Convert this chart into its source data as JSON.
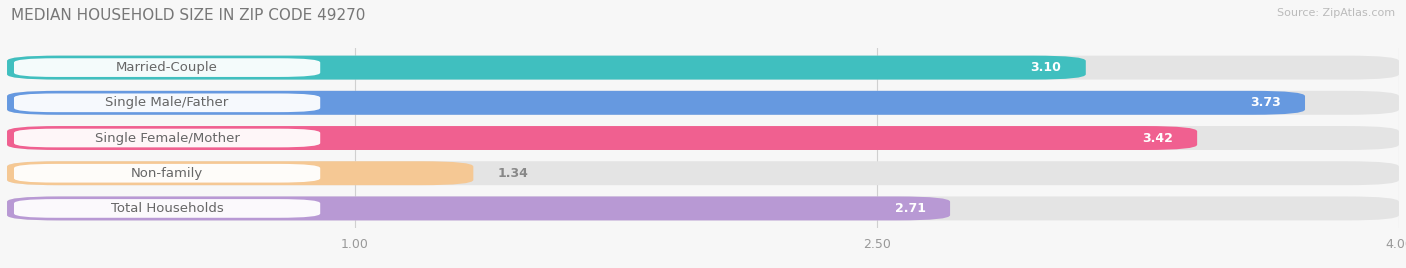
{
  "title": "MEDIAN HOUSEHOLD SIZE IN ZIP CODE 49270",
  "source": "Source: ZipAtlas.com",
  "categories": [
    "Married-Couple",
    "Single Male/Father",
    "Single Female/Mother",
    "Non-family",
    "Total Households"
  ],
  "values": [
    3.1,
    3.73,
    3.42,
    1.34,
    2.71
  ],
  "bar_colors": [
    "#40bfbf",
    "#6699e0",
    "#f06090",
    "#f5c894",
    "#b899d4"
  ],
  "xlim": [
    0,
    4.0
  ],
  "xticks": [
    1.0,
    2.5,
    4.0
  ],
  "background_color": "#f7f7f7",
  "bar_bg_color": "#e4e4e4",
  "white_label_bg": "#ffffff",
  "label_text_color": "#666666",
  "value_color_inside": "#ffffff",
  "value_color_outside": "#888888",
  "title_fontsize": 11,
  "label_fontsize": 9.5,
  "value_fontsize": 9,
  "tick_fontsize": 9,
  "source_fontsize": 8
}
